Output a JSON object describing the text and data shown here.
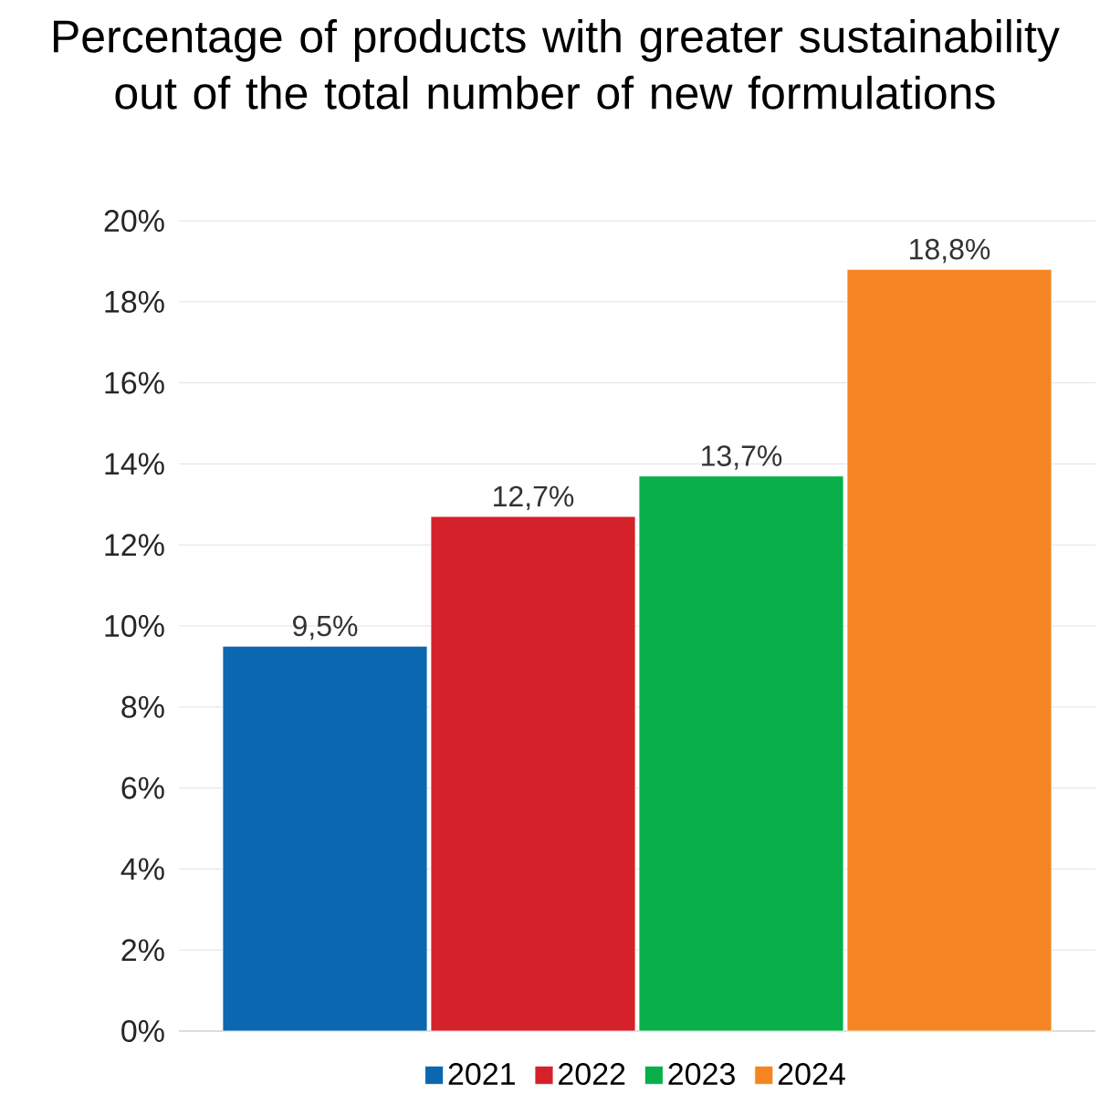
{
  "chart_data": {
    "type": "bar",
    "title": "Percentage of products with greater sustainability out of the total number of new formulations",
    "categories": [
      null
    ],
    "series": [
      {
        "name": "2021",
        "color": "#0a67b0",
        "values": [
          9.5
        ],
        "value_labels": [
          "9,5%"
        ]
      },
      {
        "name": "2022",
        "color": "#d52129",
        "values": [
          12.7
        ],
        "value_labels": [
          "12,7%"
        ]
      },
      {
        "name": "2023",
        "color": "#09b04a",
        "values": [
          13.7
        ],
        "value_labels": [
          "13,7%"
        ]
      },
      {
        "name": "2024",
        "color": "#f58522",
        "values": [
          18.8
        ],
        "value_labels": [
          "18,8%"
        ]
      }
    ],
    "ylim": [
      0,
      20
    ],
    "yticks": [
      {
        "value": 0,
        "label": "0%"
      },
      {
        "value": 2,
        "label": "2%"
      },
      {
        "value": 4,
        "label": "4%"
      },
      {
        "value": 6,
        "label": "6%"
      },
      {
        "value": 8,
        "label": "8%"
      },
      {
        "value": 10,
        "label": "10%"
      },
      {
        "value": 12,
        "label": "12%"
      },
      {
        "value": 14,
        "label": "14%"
      },
      {
        "value": 16,
        "label": "16%"
      },
      {
        "value": 18,
        "label": "18%"
      },
      {
        "value": 20,
        "label": "20%"
      }
    ],
    "grid": "y",
    "legend": "bottom"
  }
}
